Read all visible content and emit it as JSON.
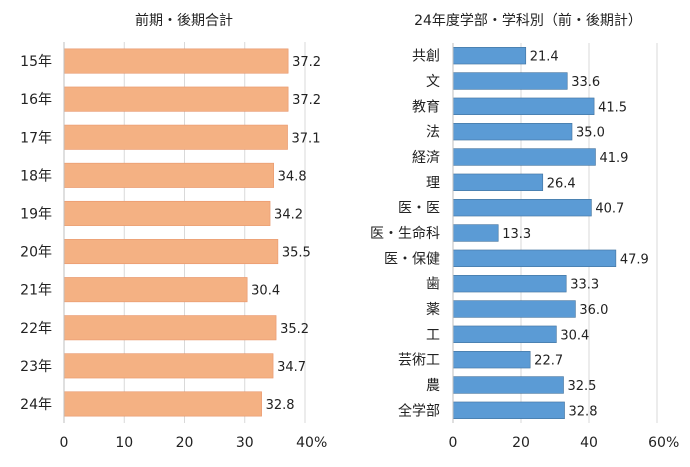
{
  "chart_data": [
    {
      "type": "bar",
      "orientation": "horizontal",
      "title": "前期・後期合計",
      "categories": [
        "15年",
        "16年",
        "17年",
        "18年",
        "19年",
        "20年",
        "21年",
        "22年",
        "23年",
        "24年"
      ],
      "values": [
        37.2,
        37.2,
        37.1,
        34.8,
        34.2,
        35.5,
        30.4,
        35.2,
        34.7,
        32.8
      ],
      "value_labels": [
        "37.2",
        "37.2",
        "37.1",
        "34.8",
        "34.2",
        "35.5",
        "30.4",
        "35.2",
        "34.7",
        "32.8"
      ],
      "xlim": [
        0,
        40
      ],
      "xticks": [
        "0",
        "10",
        "20",
        "30",
        "40"
      ],
      "unit_label": "%",
      "grid": true,
      "color": "#F4B183",
      "edge_color": "#E8956A"
    },
    {
      "type": "bar",
      "orientation": "horizontal",
      "title": "24年度学部・学科別（前・後期計）",
      "categories": [
        "共創",
        "文",
        "教育",
        "法",
        "経済",
        "理",
        "医・医",
        "医・生命科",
        "医・保健",
        "歯",
        "薬",
        "工",
        "芸術工",
        "農",
        "全学部"
      ],
      "values": [
        21.4,
        33.6,
        41.5,
        35.0,
        41.9,
        26.4,
        40.7,
        13.3,
        47.9,
        33.3,
        36.0,
        30.4,
        22.7,
        32.5,
        32.8
      ],
      "value_labels": [
        "21.4",
        "33.6",
        "41.5",
        "35.0",
        "41.9",
        "26.4",
        "40.7",
        "13.3",
        "47.9",
        "33.3",
        "36.0",
        "30.4",
        "22.7",
        "32.5",
        "32.8"
      ],
      "xlim": [
        0,
        60
      ],
      "xticks": [
        "0",
        "20",
        "40",
        "60"
      ],
      "unit_label": "%",
      "grid": true,
      "color": "#5B9BD5",
      "edge_color": "#41719C"
    }
  ]
}
